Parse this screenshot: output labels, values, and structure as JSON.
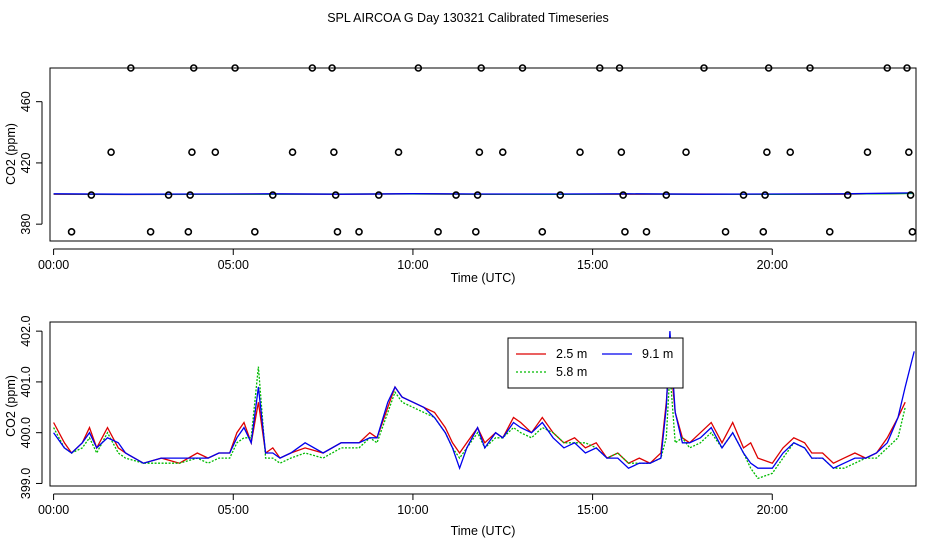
{
  "title": "SPL AIRCOA G  Day 130321  Calibrated Timeseries",
  "colors": {
    "red": "#dd0000",
    "green": "#00bb00",
    "blue": "#0000ee",
    "axis": "#000000"
  },
  "chart_data": [
    {
      "type": "scatter",
      "xlabel": "Time (UTC)",
      "ylabel": "CO2 (ppm)",
      "xlim": [
        -0.1,
        24.0
      ],
      "ylim": [
        369,
        482
      ],
      "x_ticks": [
        0,
        5,
        10,
        15,
        20
      ],
      "x_tick_labels": [
        "00:00",
        "05:00",
        "10:00",
        "15:00",
        "20:00"
      ],
      "y_ticks": [
        380,
        420,
        460
      ],
      "y_tick_labels": [
        "380",
        "420",
        "460"
      ],
      "calibration_points": [
        {
          "x": 0.5,
          "y": 375
        },
        {
          "x": 1.05,
          "y": 399
        },
        {
          "x": 1.6,
          "y": 427
        },
        {
          "x": 2.15,
          "y": 482
        },
        {
          "x": 2.7,
          "y": 375
        },
        {
          "x": 3.2,
          "y": 399
        },
        {
          "x": 3.75,
          "y": 375
        },
        {
          "x": 3.8,
          "y": 399
        },
        {
          "x": 3.85,
          "y": 427
        },
        {
          "x": 3.9,
          "y": 482
        },
        {
          "x": 4.5,
          "y": 427
        },
        {
          "x": 5.05,
          "y": 482
        },
        {
          "x": 5.6,
          "y": 375
        },
        {
          "x": 6.1,
          "y": 399
        },
        {
          "x": 6.65,
          "y": 427
        },
        {
          "x": 7.2,
          "y": 482
        },
        {
          "x": 7.75,
          "y": 482
        },
        {
          "x": 7.8,
          "y": 427
        },
        {
          "x": 7.85,
          "y": 399
        },
        {
          "x": 7.9,
          "y": 375
        },
        {
          "x": 8.5,
          "y": 375
        },
        {
          "x": 9.05,
          "y": 399
        },
        {
          "x": 9.6,
          "y": 427
        },
        {
          "x": 10.15,
          "y": 482
        },
        {
          "x": 10.7,
          "y": 375
        },
        {
          "x": 11.2,
          "y": 399
        },
        {
          "x": 11.75,
          "y": 375
        },
        {
          "x": 11.8,
          "y": 399
        },
        {
          "x": 11.85,
          "y": 427
        },
        {
          "x": 11.9,
          "y": 482
        },
        {
          "x": 12.5,
          "y": 427
        },
        {
          "x": 13.05,
          "y": 482
        },
        {
          "x": 13.6,
          "y": 375
        },
        {
          "x": 14.1,
          "y": 399
        },
        {
          "x": 14.65,
          "y": 427
        },
        {
          "x": 15.2,
          "y": 482
        },
        {
          "x": 15.75,
          "y": 482
        },
        {
          "x": 15.8,
          "y": 427
        },
        {
          "x": 15.85,
          "y": 399
        },
        {
          "x": 15.9,
          "y": 375
        },
        {
          "x": 16.5,
          "y": 375
        },
        {
          "x": 17.05,
          "y": 399
        },
        {
          "x": 17.6,
          "y": 427
        },
        {
          "x": 18.1,
          "y": 482
        },
        {
          "x": 18.7,
          "y": 375
        },
        {
          "x": 19.2,
          "y": 399
        },
        {
          "x": 19.75,
          "y": 375
        },
        {
          "x": 19.8,
          "y": 399
        },
        {
          "x": 19.85,
          "y": 427
        },
        {
          "x": 19.9,
          "y": 482
        },
        {
          "x": 20.5,
          "y": 427
        },
        {
          "x": 21.05,
          "y": 482
        },
        {
          "x": 21.6,
          "y": 375
        },
        {
          "x": 22.1,
          "y": 399
        },
        {
          "x": 22.65,
          "y": 427
        },
        {
          "x": 23.2,
          "y": 482
        },
        {
          "x": 23.75,
          "y": 482
        },
        {
          "x": 23.8,
          "y": 427
        },
        {
          "x": 23.85,
          "y": 399
        },
        {
          "x": 23.9,
          "y": 375
        }
      ],
      "series": [
        {
          "color": "#dd0000",
          "x": [
            0,
            2,
            4,
            6,
            8,
            10,
            12,
            14,
            16,
            18,
            20,
            22,
            23.9
          ],
          "values": [
            399.6,
            399.4,
            399.5,
            399.7,
            399.6,
            399.8,
            399.5,
            399.6,
            399.6,
            399.7,
            399.5,
            399.6,
            400.2
          ]
        },
        {
          "color": "#00bb00",
          "x": [
            0,
            2,
            4,
            6,
            8,
            10,
            12,
            14,
            16,
            18,
            20,
            22,
            23.9
          ],
          "values": [
            399.7,
            399.5,
            399.6,
            399.6,
            399.7,
            399.7,
            399.6,
            399.5,
            399.7,
            399.6,
            399.5,
            399.7,
            400.0
          ]
        },
        {
          "color": "#0000ee",
          "x": [
            0,
            2,
            4,
            6,
            8,
            10,
            12,
            14,
            16,
            18,
            20,
            22,
            23.9
          ],
          "values": [
            399.8,
            399.6,
            399.7,
            399.8,
            399.6,
            399.9,
            399.7,
            399.7,
            399.8,
            399.6,
            399.7,
            399.8,
            400.4
          ]
        }
      ]
    },
    {
      "type": "line",
      "xlabel": "Time (UTC)",
      "ylabel": "CO2 (ppm)",
      "xlim": [
        -0.1,
        24.0
      ],
      "ylim": [
        398.95,
        402.18
      ],
      "x_ticks": [
        0,
        5,
        10,
        15,
        20
      ],
      "x_tick_labels": [
        "00:00",
        "05:00",
        "10:00",
        "15:00",
        "20:00"
      ],
      "y_ticks": [
        399.0,
        400.0,
        401.0,
        402.0
      ],
      "y_tick_labels": [
        "399.0",
        "400.0",
        "401.0",
        "402.0"
      ],
      "legend": {
        "position": "top-center",
        "entries": [
          "2.5 m",
          "5.8 m",
          "9.1 m"
        ]
      },
      "series": [
        {
          "name": "2.5 m",
          "color": "#dd0000",
          "dash": "solid",
          "x": [
            0,
            0.3,
            0.5,
            0.8,
            1.0,
            1.2,
            1.5,
            1.8,
            2.0,
            2.5,
            3.0,
            3.5,
            4.0,
            4.3,
            4.6,
            4.9,
            5.1,
            5.3,
            5.5,
            5.7,
            5.9,
            6.1,
            6.3,
            6.6,
            7.0,
            7.5,
            8.0,
            8.5,
            8.8,
            9.0,
            9.3,
            9.5,
            9.7,
            10.0,
            10.3,
            10.6,
            10.9,
            11.1,
            11.3,
            11.5,
            11.8,
            12.0,
            12.3,
            12.5,
            12.8,
            13.0,
            13.3,
            13.6,
            13.9,
            14.2,
            14.5,
            14.8,
            15.1,
            15.4,
            15.7,
            16.0,
            16.3,
            16.6,
            16.9,
            17.05,
            17.15,
            17.3,
            17.5,
            17.7,
            18.0,
            18.3,
            18.6,
            18.9,
            19.2,
            19.4,
            19.6,
            20.0,
            20.3,
            20.6,
            20.9,
            21.1,
            21.4,
            21.7,
            22.0,
            22.3,
            22.6,
            22.9,
            23.2,
            23.5,
            23.7
          ],
          "values": [
            400.2,
            399.8,
            399.6,
            399.8,
            400.1,
            399.7,
            400.1,
            399.7,
            399.6,
            399.4,
            399.5,
            399.4,
            399.6,
            399.5,
            399.6,
            399.6,
            400.0,
            400.2,
            399.8,
            400.6,
            399.6,
            399.7,
            399.5,
            399.6,
            399.7,
            399.6,
            399.8,
            399.8,
            400.0,
            399.9,
            400.5,
            400.9,
            400.7,
            400.6,
            400.5,
            400.4,
            400.1,
            399.8,
            399.6,
            399.8,
            400.1,
            399.8,
            400.0,
            399.9,
            400.3,
            400.2,
            400.0,
            400.3,
            400.0,
            399.8,
            399.9,
            399.7,
            399.8,
            399.5,
            399.6,
            399.4,
            399.5,
            399.4,
            399.6,
            400.6,
            401.5,
            400.4,
            399.9,
            399.8,
            400.0,
            400.2,
            399.8,
            400.2,
            399.7,
            399.8,
            399.5,
            399.4,
            399.7,
            399.9,
            399.8,
            399.6,
            399.6,
            399.4,
            399.5,
            399.6,
            399.5,
            399.6,
            399.9,
            400.3,
            400.6
          ]
        },
        {
          "name": "5.8 m",
          "color": "#00bb00",
          "dash": "dotted",
          "x": [
            0,
            0.3,
            0.5,
            0.8,
            1.0,
            1.2,
            1.5,
            1.8,
            2.0,
            2.5,
            3.0,
            3.5,
            4.0,
            4.3,
            4.6,
            4.9,
            5.1,
            5.3,
            5.5,
            5.7,
            5.9,
            6.1,
            6.3,
            6.6,
            7.0,
            7.5,
            8.0,
            8.5,
            8.8,
            9.0,
            9.3,
            9.5,
            9.7,
            10.0,
            10.3,
            10.6,
            10.9,
            11.1,
            11.3,
            11.5,
            11.8,
            12.0,
            12.3,
            12.5,
            12.8,
            13.0,
            13.3,
            13.6,
            13.9,
            14.2,
            14.5,
            14.8,
            15.1,
            15.4,
            15.7,
            16.0,
            16.3,
            16.6,
            16.9,
            17.05,
            17.15,
            17.3,
            17.5,
            17.7,
            18.0,
            18.3,
            18.6,
            18.9,
            19.2,
            19.4,
            19.6,
            20.0,
            20.3,
            20.6,
            20.9,
            21.1,
            21.4,
            21.7,
            22.0,
            22.3,
            22.6,
            22.9,
            23.2,
            23.5,
            23.7
          ],
          "values": [
            400.1,
            399.7,
            399.6,
            399.7,
            399.9,
            399.6,
            400.0,
            399.6,
            399.5,
            399.4,
            399.4,
            399.4,
            399.5,
            399.4,
            399.5,
            399.5,
            399.8,
            399.9,
            399.9,
            401.3,
            399.5,
            399.5,
            399.4,
            399.5,
            399.6,
            399.5,
            399.7,
            399.7,
            399.9,
            399.8,
            400.4,
            400.8,
            400.6,
            400.5,
            400.4,
            400.3,
            400.0,
            399.7,
            399.5,
            399.7,
            400.0,
            399.7,
            399.9,
            399.9,
            400.1,
            400.0,
            399.9,
            400.1,
            400.0,
            399.8,
            399.8,
            399.8,
            399.7,
            399.5,
            399.6,
            399.4,
            399.4,
            399.4,
            399.5,
            399.9,
            401.2,
            399.8,
            399.9,
            399.7,
            399.8,
            400.0,
            399.7,
            400.0,
            399.6,
            399.3,
            399.1,
            399.2,
            399.5,
            399.8,
            399.7,
            399.5,
            399.5,
            399.3,
            399.3,
            399.4,
            399.5,
            399.5,
            399.7,
            399.9,
            400.5
          ]
        },
        {
          "name": "9.1 m",
          "color": "#0000ee",
          "dash": "solid",
          "x": [
            0,
            0.3,
            0.5,
            0.8,
            1.0,
            1.2,
            1.5,
            1.8,
            2.0,
            2.5,
            3.0,
            3.5,
            4.0,
            4.3,
            4.6,
            4.9,
            5.1,
            5.3,
            5.5,
            5.7,
            5.9,
            6.1,
            6.3,
            6.6,
            7.0,
            7.5,
            8.0,
            8.5,
            8.8,
            9.0,
            9.3,
            9.5,
            9.7,
            10.0,
            10.3,
            10.6,
            10.9,
            11.1,
            11.3,
            11.5,
            11.8,
            12.0,
            12.3,
            12.5,
            12.8,
            13.0,
            13.3,
            13.6,
            13.9,
            14.2,
            14.5,
            14.8,
            15.1,
            15.4,
            15.7,
            16.0,
            16.3,
            16.6,
            16.9,
            17.05,
            17.15,
            17.3,
            17.5,
            17.7,
            18.0,
            18.3,
            18.6,
            18.9,
            19.2,
            19.4,
            19.6,
            20.0,
            20.3,
            20.6,
            20.9,
            21.1,
            21.4,
            21.7,
            22.0,
            22.3,
            22.6,
            22.9,
            23.2,
            23.5,
            23.7,
            23.95
          ],
          "values": [
            400.0,
            399.7,
            399.6,
            399.8,
            400.0,
            399.7,
            399.9,
            399.8,
            399.6,
            399.4,
            399.5,
            399.5,
            399.5,
            399.5,
            399.6,
            399.6,
            399.9,
            400.1,
            399.8,
            400.9,
            399.6,
            399.6,
            399.5,
            399.6,
            399.8,
            399.6,
            399.8,
            399.8,
            399.9,
            399.9,
            400.6,
            400.9,
            400.7,
            400.6,
            400.5,
            400.3,
            400.0,
            399.7,
            399.3,
            399.7,
            400.1,
            399.7,
            400.0,
            399.9,
            400.2,
            400.1,
            400.0,
            400.2,
            399.9,
            399.7,
            399.8,
            399.6,
            399.7,
            399.5,
            399.5,
            399.3,
            399.4,
            399.4,
            399.5,
            400.5,
            402.0,
            400.4,
            399.8,
            399.8,
            399.9,
            400.1,
            399.7,
            400.0,
            399.6,
            399.4,
            399.3,
            399.3,
            399.6,
            399.8,
            399.7,
            399.5,
            399.5,
            399.3,
            399.4,
            399.5,
            399.5,
            399.6,
            399.8,
            400.3,
            400.9,
            401.6
          ]
        }
      ]
    }
  ]
}
